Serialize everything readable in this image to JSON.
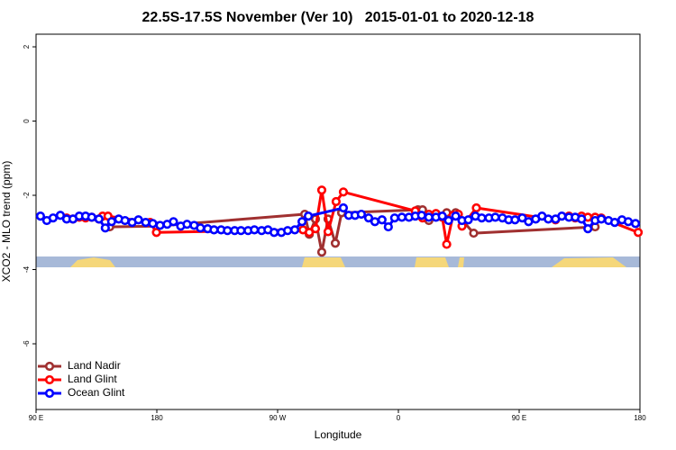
{
  "chart_data": {
    "type": "line",
    "title": "22.5S-17.5S November (Ver 10)   2015-01-01 to 2020-12-18",
    "x_label": "Longitude",
    "y_label": "XCO2 - MLO trend (ppm)",
    "xlim": [
      90,
      540
    ],
    "ylim": [
      -7.77,
      2.34
    ],
    "xticks": [
      {
        "value": 90,
        "label": "90 E"
      },
      {
        "value": 180,
        "label": "180"
      },
      {
        "value": 270,
        "label": "90 W"
      },
      {
        "value": 360,
        "label": "0"
      },
      {
        "value": 450,
        "label": "90 E"
      },
      {
        "value": 540,
        "label": "180"
      }
    ],
    "yticks": [
      2,
      0,
      -2,
      -4,
      -6
    ],
    "legend": "bottom-left",
    "series": [
      {
        "name": "Land Nadir",
        "color": "#a03030",
        "x": [
          144.9,
          179.7,
          290.2,
          293.6,
          298.2,
          302.9,
          307.6,
          313.0,
          317.7,
          374.6,
          378.0,
          382.7,
          396.0,
          402.7,
          416.1,
          506.6
        ],
        "values": [
          -2.85,
          -2.83,
          -2.51,
          -3.05,
          -2.64,
          -3.53,
          -2.64,
          -3.29,
          -2.47,
          -2.39,
          -2.39,
          -2.68,
          -2.47,
          -2.47,
          -3.02,
          -2.85
        ]
      },
      {
        "name": "Land Glint",
        "color": "#ff0000",
        "x": [
          112.8,
          117.5,
          122.2,
          126.9,
          131.5,
          136.9,
          139.6,
          143.6,
          175.0,
          179.7,
          288.9,
          293.6,
          298.2,
          302.9,
          307.6,
          313.6,
          319.0,
          372.6,
          378.0,
          382.7,
          388.0,
          392.7,
          396.0,
          400.7,
          404.7,
          407.4,
          418.1,
          477.1,
          487.1,
          491.8,
          496.5,
          501.2,
          506.6,
          511.2,
          538.7
        ],
        "values": [
          -2.61,
          -2.64,
          -2.59,
          -2.61,
          -2.59,
          -2.64,
          -2.56,
          -2.56,
          -2.73,
          -3.0,
          -2.93,
          -3.0,
          -2.9,
          -1.86,
          -2.98,
          -2.17,
          -1.91,
          -2.42,
          -2.61,
          -2.51,
          -2.49,
          -2.59,
          -3.32,
          -2.54,
          -2.51,
          -2.83,
          -2.34,
          -2.66,
          -2.56,
          -2.61,
          -2.56,
          -2.59,
          -2.59,
          -2.61,
          -3.0
        ]
      },
      {
        "name": "Ocean Glint",
        "color": "#0000ff",
        "x": [
          93.3,
          98.0,
          102.7,
          108.1,
          112.8,
          117.5,
          122.2,
          126.9,
          131.5,
          136.9,
          141.6,
          146.3,
          151.6,
          156.3,
          161.6,
          166.3,
          171.7,
          177.0,
          182.4,
          187.7,
          192.4,
          197.8,
          202.5,
          207.8,
          212.5,
          217.9,
          222.6,
          227.9,
          232.6,
          238.0,
          242.7,
          248.0,
          252.7,
          258.1,
          262.8,
          267.4,
          272.8,
          277.5,
          282.8,
          288.2,
          292.9,
          319.0,
          323.0,
          327.7,
          332.4,
          337.8,
          342.5,
          347.8,
          352.5,
          357.2,
          362.6,
          367.9,
          372.6,
          377.3,
          382.7,
          388.0,
          392.7,
          397.4,
          402.7,
          407.4,
          412.1,
          417.4,
          422.1,
          427.5,
          432.2,
          437.5,
          442.2,
          446.9,
          452.3,
          457.0,
          462.3,
          467.0,
          471.7,
          477.1,
          481.8,
          487.1,
          491.8,
          496.5,
          501.2,
          506.6,
          511.2,
          516.6,
          521.2,
          526.6,
          531.3,
          536.7
        ],
        "values": [
          -2.56,
          -2.68,
          -2.61,
          -2.54,
          -2.64,
          -2.64,
          -2.56,
          -2.56,
          -2.59,
          -2.64,
          -2.88,
          -2.71,
          -2.64,
          -2.68,
          -2.73,
          -2.66,
          -2.73,
          -2.76,
          -2.81,
          -2.78,
          -2.71,
          -2.83,
          -2.78,
          -2.81,
          -2.88,
          -2.9,
          -2.93,
          -2.93,
          -2.95,
          -2.95,
          -2.95,
          -2.95,
          -2.93,
          -2.95,
          -2.93,
          -3.0,
          -3.0,
          -2.95,
          -2.93,
          -2.71,
          -2.56,
          -2.34,
          -2.54,
          -2.54,
          -2.51,
          -2.61,
          -2.71,
          -2.66,
          -2.85,
          -2.61,
          -2.59,
          -2.59,
          -2.56,
          -2.54,
          -2.59,
          -2.59,
          -2.56,
          -2.68,
          -2.56,
          -2.68,
          -2.66,
          -2.56,
          -2.61,
          -2.61,
          -2.59,
          -2.61,
          -2.66,
          -2.66,
          -2.61,
          -2.71,
          -2.64,
          -2.56,
          -2.64,
          -2.64,
          -2.56,
          -2.59,
          -2.59,
          -2.64,
          -2.9,
          -2.68,
          -2.64,
          -2.68,
          -2.73,
          -2.66,
          -2.71,
          -2.76
        ]
      }
    ]
  }
}
